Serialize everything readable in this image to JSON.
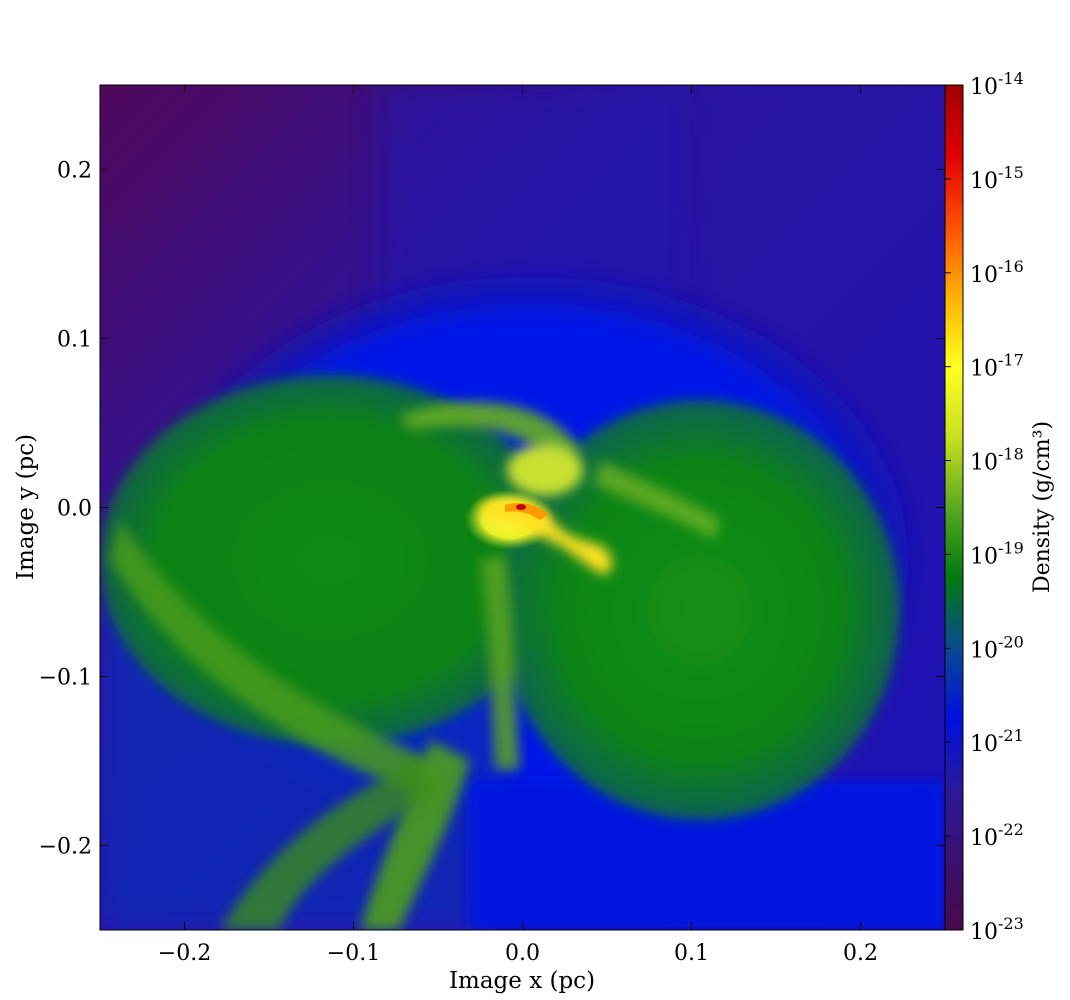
{
  "chart_data": {
    "type": "heatmap",
    "title": "",
    "xlabel": "Image x  (pc)",
    "ylabel": "Image y  (pc)",
    "xlim": [
      -0.25,
      0.25
    ],
    "ylim": [
      -0.25,
      0.25
    ],
    "x_ticks": [
      -0.2,
      -0.1,
      0.0,
      0.1,
      0.2
    ],
    "x_tick_labels": [
      "−0.2",
      "−0.1",
      "0.0",
      "0.1",
      "0.2"
    ],
    "y_ticks": [
      -0.2,
      -0.1,
      0.0,
      0.1,
      0.2
    ],
    "y_tick_labels": [
      "−0.2",
      "−0.1",
      "0.0",
      "0.1",
      "0.2"
    ],
    "grid": false,
    "colorbar": {
      "label": "Density  (g/cm³)",
      "scale": "log",
      "range": [
        1e-23,
        1e-14
      ],
      "ticks": [
        {
          "base": "10",
          "exp": "-14",
          "value": 1e-14
        },
        {
          "base": "10",
          "exp": "-15",
          "value": 1e-15
        },
        {
          "base": "10",
          "exp": "-16",
          "value": 1e-16
        },
        {
          "base": "10",
          "exp": "-17",
          "value": 1e-17
        },
        {
          "base": "10",
          "exp": "-18",
          "value": 1e-18
        },
        {
          "base": "10",
          "exp": "-19",
          "value": 1e-19
        },
        {
          "base": "10",
          "exp": "-20",
          "value": 1e-20
        },
        {
          "base": "10",
          "exp": "-21",
          "value": 1e-21
        },
        {
          "base": "10",
          "exp": "-22",
          "value": 1e-22
        },
        {
          "base": "10",
          "exp": "-23",
          "value": 1e-23
        }
      ],
      "colormap": [
        "#4a0a4a",
        "#3a1070",
        "#2a1a9a",
        "#0010e0",
        "#0a4a90",
        "#007a10",
        "#5aa820",
        "#c8e020",
        "#ffff20",
        "#ffb000",
        "#ff5000",
        "#e00000",
        "#a00000"
      ]
    }
  }
}
